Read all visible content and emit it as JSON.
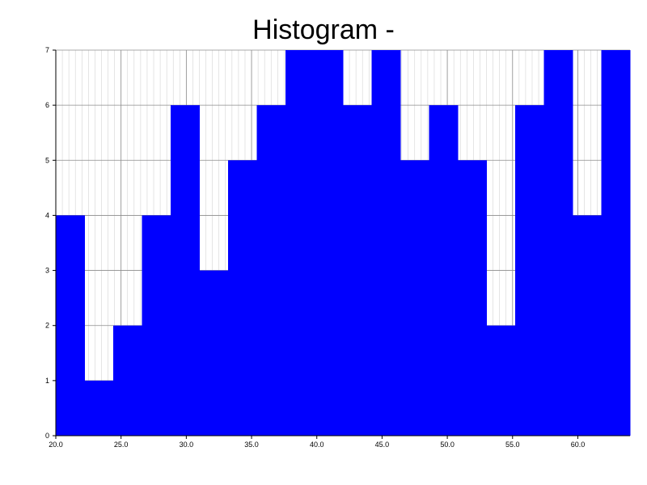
{
  "chart_data": {
    "type": "bar",
    "title": "Histogram -",
    "xlabel": "",
    "ylabel": "",
    "bin_start": 20.0,
    "bin_width": 2.2,
    "x_range": [
      20.0,
      64.0
    ],
    "ylim": [
      0,
      7
    ],
    "values": [
      4,
      1,
      2,
      4,
      6,
      3,
      5,
      6,
      7,
      7,
      6,
      7,
      5,
      6,
      5,
      2,
      6,
      7,
      4,
      7
    ],
    "x_ticks": [
      "20.0",
      "25.0",
      "30.0",
      "35.0",
      "40.0",
      "45.0",
      "50.0",
      "55.0",
      "60.0"
    ],
    "y_ticks": [
      "0",
      "1",
      "2",
      "3",
      "4",
      "5",
      "6",
      "7"
    ],
    "bar_color": "#0000ff",
    "grid": true
  }
}
